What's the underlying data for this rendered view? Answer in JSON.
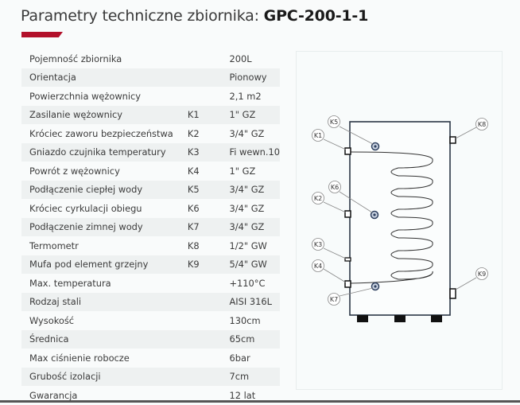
{
  "header": {
    "title_prefix": "Parametry techniczne zbiornika: ",
    "model": "GPC-200-1-1",
    "accent_color": "#b2102a"
  },
  "specs": [
    {
      "label": "Pojemność zbiornika",
      "code": "",
      "value": "200L"
    },
    {
      "label": "Orientacja",
      "code": "",
      "value": "Pionowy"
    },
    {
      "label": "Powierzchnia wężownicy",
      "code": "",
      "value": "2,1 m2"
    },
    {
      "label": "Zasilanie wężownicy",
      "code": "K1",
      "value": "1\" GZ"
    },
    {
      "label": "Króciec zaworu bezpieczeństwa",
      "code": "K2",
      "value": "3/4\" GZ"
    },
    {
      "label": "Gniazdo czujnika temperatury",
      "code": "K3",
      "value": "Fi wewn.10"
    },
    {
      "label": "Powrót z wężownicy",
      "code": "K4",
      "value": "1\" GZ"
    },
    {
      "label": "Podłączenie ciepłej wody",
      "code": "K5",
      "value": "3/4\" GZ"
    },
    {
      "label": "Króciec cyrkulacji obiegu",
      "code": "K6",
      "value": "3/4\" GZ"
    },
    {
      "label": "Podłączenie zimnej wody",
      "code": "K7",
      "value": "3/4\" GZ"
    },
    {
      "label": "Termometr",
      "code": "K8",
      "value": "1/2\" GW"
    },
    {
      "label": "Mufa pod element grzejny",
      "code": "K9",
      "value": "5/4\" GW"
    },
    {
      "label": "Max. temperatura",
      "code": "",
      "value": "+110°C"
    },
    {
      "label": "Rodzaj stali",
      "code": "",
      "value": "AISI 316L"
    },
    {
      "label": "Wysokość",
      "code": "",
      "value": "130cm"
    },
    {
      "label": "Średnica",
      "code": "",
      "value": "65cm"
    },
    {
      "label": "Max ciśnienie robocze",
      "code": "",
      "value": "6bar"
    },
    {
      "label": "Grubość izolacji",
      "code": "",
      "value": "7cm"
    },
    {
      "label": "Gwarancja",
      "code": "",
      "value": "12 lat"
    }
  ],
  "diagram": {
    "labels": {
      "k1": "K1",
      "k2": "K2",
      "k3": "K3",
      "k4": "K4",
      "k5": "K5",
      "k6": "K6",
      "k7": "K7",
      "k8": "K8",
      "k9": "K9"
    }
  }
}
